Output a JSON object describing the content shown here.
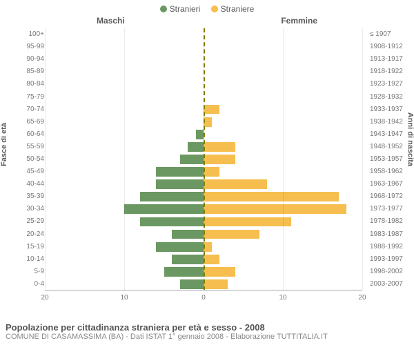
{
  "legend": {
    "male_label": "Stranieri",
    "female_label": "Straniere",
    "male_color": "#6b9862",
    "female_color": "#f6be4f"
  },
  "headers": {
    "male": "Maschi",
    "female": "Femmine"
  },
  "axis_titles": {
    "left": "Fasce di età",
    "right": "Anni di nascita"
  },
  "chart": {
    "type": "population-pyramid",
    "xlim": 20,
    "xticks": [
      20,
      10,
      0,
      10,
      20
    ],
    "background_color": "#ffffff",
    "grid_color": "rgba(0,0,0,0.08)",
    "center_line_color": "#808000",
    "rows": [
      {
        "age": "100+",
        "birth": "≤ 1907",
        "m": 0,
        "f": 0
      },
      {
        "age": "95-99",
        "birth": "1908-1912",
        "m": 0,
        "f": 0
      },
      {
        "age": "90-94",
        "birth": "1913-1917",
        "m": 0,
        "f": 0
      },
      {
        "age": "85-89",
        "birth": "1918-1922",
        "m": 0,
        "f": 0
      },
      {
        "age": "80-84",
        "birth": "1923-1927",
        "m": 0,
        "f": 0
      },
      {
        "age": "75-79",
        "birth": "1928-1932",
        "m": 0,
        "f": 0
      },
      {
        "age": "70-74",
        "birth": "1933-1937",
        "m": 0,
        "f": 2
      },
      {
        "age": "65-69",
        "birth": "1938-1942",
        "m": 0,
        "f": 1
      },
      {
        "age": "60-64",
        "birth": "1943-1947",
        "m": 1,
        "f": 0
      },
      {
        "age": "55-59",
        "birth": "1948-1952",
        "m": 2,
        "f": 4
      },
      {
        "age": "50-54",
        "birth": "1953-1957",
        "m": 3,
        "f": 4
      },
      {
        "age": "45-49",
        "birth": "1958-1962",
        "m": 6,
        "f": 2
      },
      {
        "age": "40-44",
        "birth": "1963-1967",
        "m": 6,
        "f": 8
      },
      {
        "age": "35-39",
        "birth": "1968-1972",
        "m": 8,
        "f": 17
      },
      {
        "age": "30-34",
        "birth": "1973-1977",
        "m": 10,
        "f": 18
      },
      {
        "age": "25-29",
        "birth": "1978-1982",
        "m": 8,
        "f": 11
      },
      {
        "age": "20-24",
        "birth": "1983-1987",
        "m": 4,
        "f": 7
      },
      {
        "age": "15-19",
        "birth": "1988-1992",
        "m": 6,
        "f": 1
      },
      {
        "age": "10-14",
        "birth": "1993-1997",
        "m": 4,
        "f": 2
      },
      {
        "age": "5-9",
        "birth": "1998-2002",
        "m": 5,
        "f": 4
      },
      {
        "age": "0-4",
        "birth": "2003-2007",
        "m": 3,
        "f": 3
      }
    ]
  },
  "footer": {
    "title": "Popolazione per cittadinanza straniera per età e sesso - 2008",
    "subtitle": "COMUNE DI CASAMASSIMA (BA) - Dati ISTAT 1° gennaio 2008 - Elaborazione TUTTITALIA.IT"
  }
}
